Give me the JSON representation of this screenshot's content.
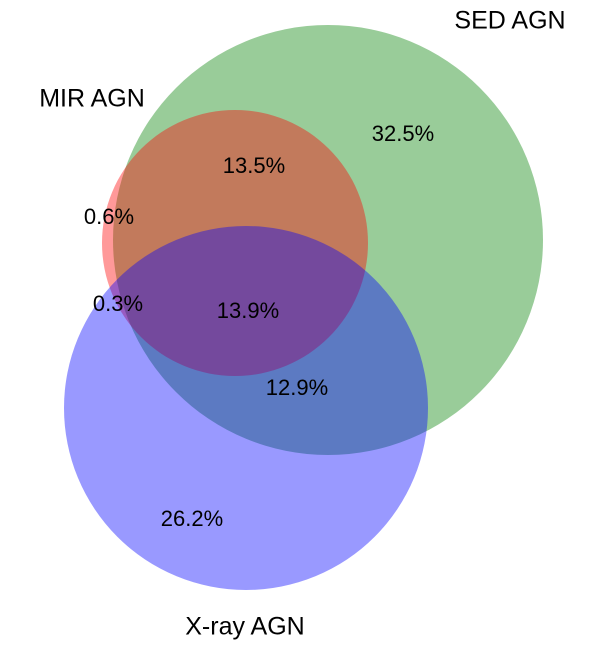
{
  "chart_data": {
    "type": "venn",
    "sets": [
      {
        "name": "SED AGN",
        "color": "green"
      },
      {
        "name": "MIR AGN",
        "color": "red"
      },
      {
        "name": "X-ray AGN",
        "color": "blue"
      }
    ],
    "regions": {
      "values": [
        32.5,
        13.5,
        0.6,
        0.3,
        13.9,
        12.9,
        26.2
      ],
      "value_labels": [
        "32.5%",
        "13.5%",
        "0.6%",
        "0.3%",
        "13.9%",
        "12.9%",
        "26.2%"
      ]
    },
    "opacity": 0.4
  }
}
